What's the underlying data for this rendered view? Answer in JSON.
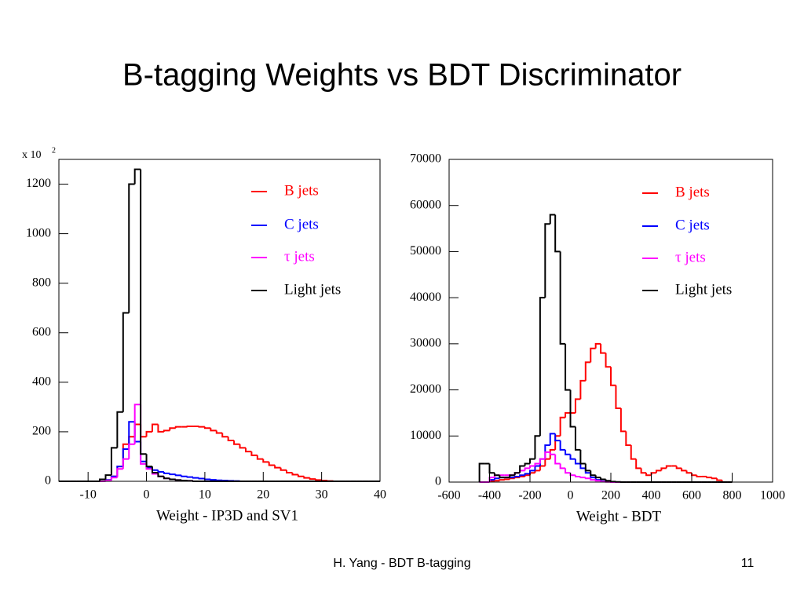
{
  "title": "B-tagging Weights vs BDT Discriminator",
  "footer": "H. Yang - BDT B-tagging",
  "page_number": "11",
  "chart_data": [
    {
      "type": "histogram",
      "x_label": "Weight - IP3D and SV1",
      "y_multiplier": "x 10",
      "y_multiplier_exp": "2",
      "xlim": [
        -15,
        40
      ],
      "xticks": [
        -10,
        0,
        10,
        20,
        30,
        40
      ],
      "ylim": [
        0,
        1300
      ],
      "yticks": [
        0,
        200,
        400,
        600,
        800,
        1000,
        1200
      ],
      "legend": "top right",
      "bins": [
        -15,
        -14,
        -13,
        -12,
        -11,
        -10,
        -9,
        -8,
        -7,
        -6,
        -5,
        -4,
        -3,
        -2,
        -1,
        0,
        1,
        2,
        3,
        4,
        5,
        6,
        7,
        8,
        9,
        10,
        11,
        12,
        13,
        14,
        15,
        16,
        17,
        18,
        19,
        20,
        21,
        22,
        23,
        24,
        25,
        26,
        27,
        28,
        29,
        30,
        31,
        32,
        33,
        34,
        35,
        36,
        37,
        38,
        39,
        40
      ],
      "series": [
        {
          "name": "B jets",
          "color": "#ff0000",
          "values": [
            0,
            0,
            0,
            0,
            0,
            0,
            0,
            0,
            5,
            20,
            60,
            150,
            180,
            230,
            180,
            200,
            230,
            200,
            205,
            215,
            220,
            220,
            222,
            222,
            220,
            215,
            205,
            195,
            180,
            165,
            150,
            135,
            120,
            105,
            90,
            78,
            65,
            55,
            45,
            35,
            27,
            20,
            14,
            9,
            5,
            3,
            1,
            0,
            0,
            0,
            0,
            0,
            0,
            0,
            0
          ]
        },
        {
          "name": "C jets",
          "color": "#0000ff",
          "values": [
            0,
            0,
            0,
            0,
            0,
            0,
            0,
            0,
            5,
            20,
            60,
            130,
            240,
            160,
            80,
            55,
            45,
            38,
            32,
            28,
            24,
            20,
            17,
            14,
            11,
            8,
            6,
            4,
            3,
            2,
            1,
            0,
            0,
            0,
            0,
            0,
            0,
            0,
            0,
            0,
            0,
            0,
            0,
            0,
            0,
            0,
            0,
            0,
            0,
            0,
            0,
            0,
            0,
            0,
            0
          ]
        },
        {
          "name": "τ jets",
          "color": "#ff00ff",
          "values": [
            0,
            0,
            0,
            0,
            0,
            0,
            0,
            0,
            3,
            15,
            50,
            90,
            150,
            310,
            70,
            50,
            30,
            20,
            12,
            8,
            5,
            3,
            2,
            0,
            0,
            0,
            0,
            0,
            0,
            0,
            0,
            0,
            0,
            0,
            0,
            0,
            0,
            0,
            0,
            0,
            0,
            0,
            0,
            0,
            0,
            0,
            0,
            0,
            0,
            0,
            0,
            0,
            0,
            0,
            0
          ]
        },
        {
          "name": "Light jets",
          "color": "#000000",
          "values": [
            0,
            0,
            0,
            0,
            0,
            0,
            0,
            8,
            25,
            135,
            280,
            680,
            1200,
            1260,
            110,
            60,
            35,
            20,
            12,
            8,
            5,
            3,
            2,
            0,
            0,
            0,
            0,
            0,
            0,
            0,
            0,
            0,
            0,
            0,
            0,
            0,
            0,
            0,
            0,
            0,
            0,
            0,
            0,
            0,
            0,
            0,
            0,
            0,
            0,
            0,
            0,
            0,
            0,
            0,
            0
          ]
        }
      ]
    },
    {
      "type": "histogram",
      "x_label": "Weight - BDT",
      "xlim": [
        -600,
        1000
      ],
      "xticks": [
        -600,
        -400,
        -200,
        0,
        200,
        400,
        600,
        800,
        1000
      ],
      "ylim": [
        0,
        70000
      ],
      "yticks": [
        0,
        10000,
        20000,
        30000,
        40000,
        50000,
        60000,
        70000
      ],
      "legend": "top right",
      "bins": [
        -450,
        -425,
        -400,
        -375,
        -350,
        -325,
        -300,
        -275,
        -250,
        -225,
        -200,
        -175,
        -150,
        -125,
        -100,
        -75,
        -50,
        -25,
        0,
        25,
        50,
        75,
        100,
        125,
        150,
        175,
        200,
        225,
        250,
        275,
        300,
        325,
        350,
        375,
        400,
        425,
        450,
        475,
        500,
        525,
        550,
        575,
        600,
        625,
        650,
        675,
        700,
        725,
        750,
        775,
        800
      ],
      "series": [
        {
          "name": "B jets",
          "color": "#ff0000",
          "values": [
            0,
            0,
            200,
            300,
            500,
            600,
            800,
            1000,
            1200,
            1500,
            2000,
            2500,
            3500,
            5000,
            7000,
            10000,
            14000,
            15000,
            15000,
            18000,
            22000,
            26000,
            29000,
            30000,
            28000,
            25000,
            21000,
            16000,
            11000,
            8000,
            5000,
            3000,
            2000,
            1500,
            2000,
            2500,
            3000,
            3500,
            3500,
            3000,
            2500,
            2000,
            1500,
            1200,
            1200,
            1000,
            800,
            400,
            0,
            0
          ]
        },
        {
          "name": "C jets",
          "color": "#0000ff",
          "values": [
            0,
            0,
            500,
            800,
            1000,
            1000,
            1000,
            1200,
            1500,
            1800,
            2500,
            3500,
            5000,
            8000,
            10500,
            9000,
            7000,
            6000,
            5000,
            4000,
            3000,
            2000,
            1000,
            500,
            200,
            100,
            0,
            0,
            0,
            0,
            0,
            0,
            0,
            0,
            0,
            0,
            0,
            0,
            0,
            0,
            0,
            0,
            0,
            0,
            0,
            0,
            0,
            0,
            0,
            0
          ]
        },
        {
          "name": "τ jets",
          "color": "#ff00ff",
          "values": [
            0,
            0,
            1000,
            1500,
            1500,
            1500,
            1500,
            2000,
            2500,
            3000,
            3500,
            4000,
            5000,
            6500,
            6000,
            4000,
            3000,
            2000,
            1500,
            1200,
            1000,
            800,
            500,
            300,
            100,
            50,
            0,
            0,
            0,
            0,
            0,
            0,
            0,
            0,
            0,
            0,
            0,
            0,
            0,
            0,
            0,
            0,
            0,
            0,
            0,
            0,
            0,
            0,
            0,
            0
          ]
        },
        {
          "name": "Light jets",
          "color": "#000000",
          "values": [
            4000,
            4000,
            2000,
            1500,
            1000,
            1000,
            1500,
            2000,
            3500,
            4000,
            5000,
            10000,
            40000,
            56000,
            58000,
            50000,
            30000,
            20000,
            12000,
            7000,
            4000,
            2500,
            1500,
            1000,
            600,
            300,
            100,
            50,
            0,
            0,
            0,
            0,
            0,
            0,
            0,
            0,
            0,
            0,
            0,
            0,
            0,
            0,
            0,
            0,
            0,
            0,
            0,
            0,
            0,
            0
          ]
        }
      ]
    }
  ]
}
